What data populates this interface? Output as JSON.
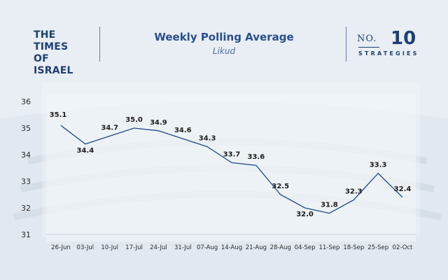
{
  "brand": {
    "line1": "THE TIMES",
    "line2": "OF ISRAEL"
  },
  "header": {
    "title": "Weekly Polling Average",
    "subtitle": "Likud"
  },
  "logo": {
    "prefix": "NO.",
    "number": "10",
    "word": "STRATEGIES"
  },
  "colors": {
    "line": "#1f4a86",
    "text": "#1c1c1c",
    "brand": "#1f3f73",
    "panel": "#f2f5f9"
  },
  "chart_data": {
    "type": "line",
    "title": "Weekly Polling Average",
    "subtitle": "Likud",
    "xlabel": "",
    "ylabel": "",
    "categories": [
      "26-Jun",
      "03-Jul",
      "10-Jul",
      "17-Jul",
      "24-Jul",
      "31-Jul",
      "07-Aug",
      "14-Aug",
      "21-Aug",
      "28-Aug",
      "04-Sep",
      "11-Sep",
      "18-Sep",
      "25-Sep",
      "02-Oct"
    ],
    "values": [
      35.1,
      34.4,
      34.7,
      35.0,
      34.9,
      34.6,
      34.3,
      33.7,
      33.6,
      32.5,
      32.0,
      31.8,
      32.3,
      33.3,
      32.4
    ],
    "ylim": [
      31,
      36
    ],
    "yticks": [
      31,
      32,
      33,
      34,
      35,
      36
    ],
    "grid": false,
    "legend": "none"
  }
}
